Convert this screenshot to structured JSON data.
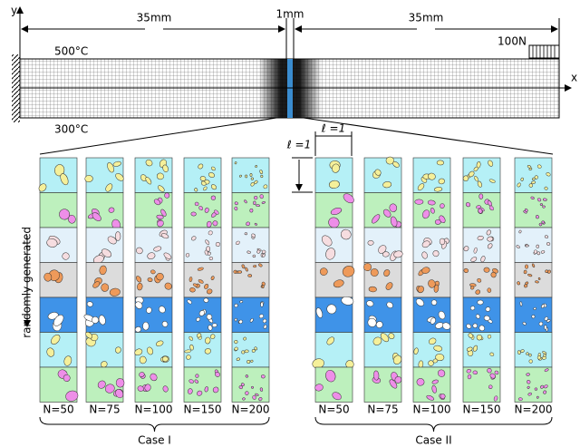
{
  "axes": {
    "y": "y",
    "x": "x"
  },
  "dimensions": {
    "left": "35mm",
    "middle": "1mm",
    "right": "35mm"
  },
  "load": "100N",
  "temperatures": {
    "top": "500°C",
    "bottom": "300°C"
  },
  "scale": {
    "horizontal": "ℓ =1",
    "vertical": "ℓ =1"
  },
  "side_label": "randomly generated",
  "cases": [
    {
      "name": "Case I",
      "columns": [
        "N=50",
        "N=75",
        "N=100",
        "N=150",
        "N=200"
      ]
    },
    {
      "name": "Case II",
      "columns": [
        "N=50",
        "N=75",
        "N=100",
        "N=150",
        "N=200"
      ]
    }
  ]
}
